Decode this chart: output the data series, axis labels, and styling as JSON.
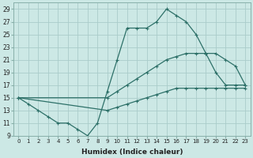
{
  "xlabel": "Humidex (Indice chaleur)",
  "background_color": "#cce8e5",
  "grid_color": "#aaccca",
  "line_color": "#2d7068",
  "xlim": [
    -0.5,
    23.5
  ],
  "ylim": [
    9,
    30
  ],
  "yticks": [
    9,
    11,
    13,
    15,
    17,
    19,
    21,
    23,
    25,
    27,
    29
  ],
  "xticks": [
    0,
    1,
    2,
    3,
    4,
    5,
    6,
    7,
    8,
    9,
    10,
    11,
    12,
    13,
    14,
    15,
    16,
    17,
    18,
    19,
    20,
    21,
    22,
    23
  ],
  "line1_x": [
    0,
    1,
    2,
    3,
    4,
    5,
    6,
    7,
    8,
    9,
    10,
    11,
    12,
    13,
    14,
    15,
    16,
    17,
    18,
    19,
    20,
    21,
    22,
    23
  ],
  "line1_y": [
    15,
    14,
    13,
    12,
    11,
    11,
    10,
    9,
    11,
    16,
    21,
    26,
    26,
    26,
    27,
    29,
    28,
    27,
    25,
    22,
    19,
    17,
    17,
    17
  ],
  "line2_x": [
    0,
    9,
    10,
    11,
    12,
    13,
    14,
    15,
    16,
    17,
    18,
    19,
    20,
    21,
    22,
    23
  ],
  "line2_y": [
    15,
    15,
    16,
    17,
    18,
    19,
    20,
    21,
    21.5,
    22,
    22,
    22,
    22,
    21,
    20,
    17
  ],
  "line3_x": [
    0,
    9,
    10,
    11,
    12,
    13,
    14,
    15,
    16,
    17,
    18,
    19,
    20,
    21,
    22,
    23
  ],
  "line3_y": [
    15,
    13,
    13.5,
    14,
    14.5,
    15,
    15.5,
    16,
    16.5,
    16.5,
    16.5,
    16.5,
    16.5,
    16.5,
    16.5,
    16.5
  ],
  "marker": "+",
  "marker_size": 3.5,
  "linewidth": 0.9
}
